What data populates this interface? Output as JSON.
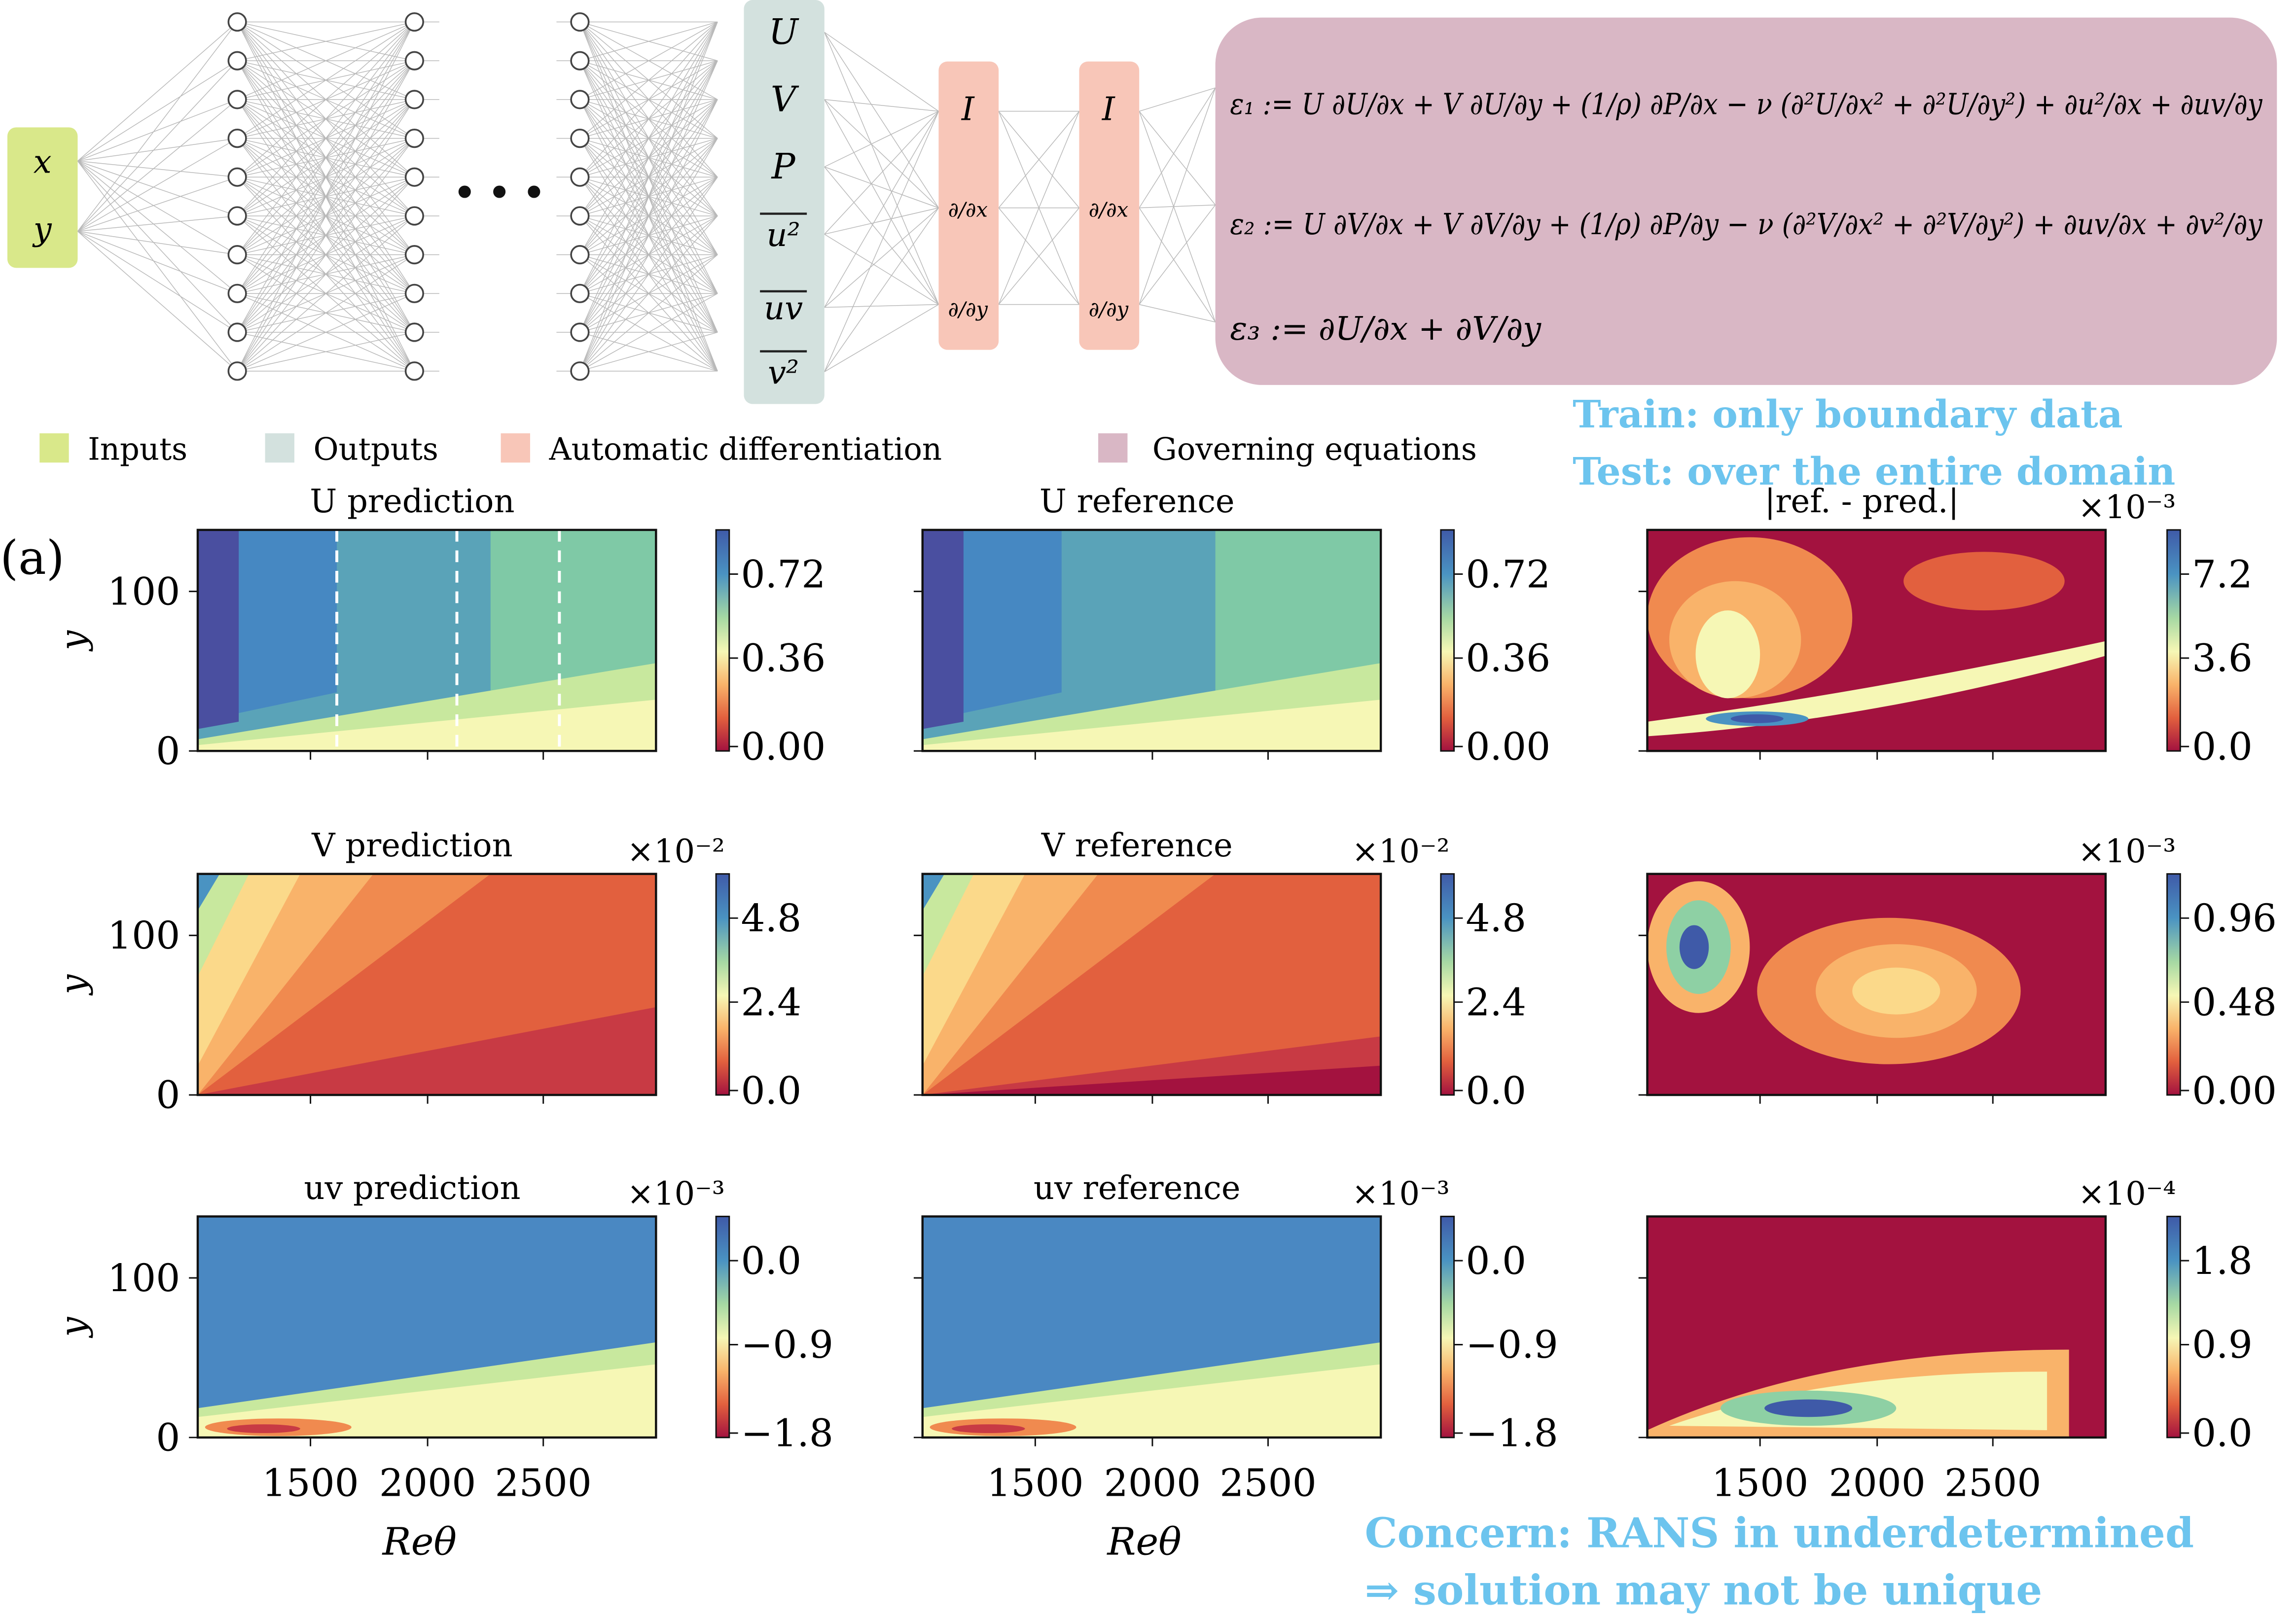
{
  "inputs": [
    "x",
    "y"
  ],
  "outputs": [
    "U",
    "V",
    "P",
    "u²",
    "uv",
    "v²"
  ],
  "ellipsis": "• • •",
  "autodiff": [
    "I",
    "∂/∂x",
    "∂/∂y"
  ],
  "equations": [
    "ε₁ := U ∂U/∂x + V ∂U/∂y + (1/ρ) ∂P/∂x − ν (∂²U/∂x² + ∂²U/∂y²) + ∂u²/∂x + ∂uv/∂y",
    "ε₂ := U ∂V/∂x + V ∂V/∂y + (1/ρ) ∂P/∂y − ν (∂²V/∂x² + ∂²V/∂y²) + ∂uv/∂x + ∂v²/∂y",
    "ε₃ := ∂U/∂x + ∂V/∂y"
  ],
  "legend": [
    {
      "label": "Inputs",
      "color": "#d9e88a"
    },
    {
      "label": "Outputs",
      "color": "#d3e1de"
    },
    {
      "label": "Automatic differentiation",
      "color": "#f8c6b8"
    },
    {
      "label": "Governing equations",
      "color": "#d9b7c5"
    }
  ],
  "annotations": {
    "train": "Train: only boundary data",
    "test": "Test: over the entire domain",
    "concern1": "Concern: RANS in underdetermined",
    "concern2": "⇒ solution may not be unique"
  },
  "panel_label": "(a)",
  "xlabel": "Reθ",
  "ylabel": "y",
  "xticks": [
    "1500",
    "2000",
    "2500"
  ],
  "yticks": [
    "0",
    "100"
  ],
  "rows": [
    {
      "var": "U",
      "titles": [
        "U prediction",
        "U reference",
        "|ref. - pred.|"
      ],
      "exponents": [
        "",
        "",
        "×10⁻³"
      ],
      "colorbars": [
        [
          "0.72",
          "0.36",
          "0.00"
        ],
        [
          "0.72",
          "0.36",
          "0.00"
        ],
        [
          "7.2",
          "3.6",
          "0.0"
        ]
      ]
    },
    {
      "var": "V",
      "titles": [
        "V prediction",
        "V reference",
        ""
      ],
      "exponents": [
        "×10⁻²",
        "×10⁻²",
        "×10⁻³"
      ],
      "colorbars": [
        [
          "4.8",
          "2.4",
          "0.0"
        ],
        [
          "4.8",
          "2.4",
          "0.0"
        ],
        [
          "0.96",
          "0.48",
          "0.00"
        ]
      ]
    },
    {
      "var": "uv",
      "titles": [
        "uv prediction",
        "uv reference",
        ""
      ],
      "exponents": [
        "×10⁻³",
        "×10⁻³",
        "×10⁻⁴"
      ],
      "colorbars": [
        [
          "0.0",
          "−0.9",
          "−1.8"
        ],
        [
          "0.0",
          "−0.9",
          "−1.8"
        ],
        [
          "1.8",
          "0.9",
          "0.0"
        ]
      ]
    }
  ],
  "colors": {
    "eq_box": "#d9b7c5",
    "ad_box": "#f8c6b8",
    "out_box": "#d3e1de",
    "in_box": "#d9e88a",
    "note": "#6cc4ee"
  }
}
